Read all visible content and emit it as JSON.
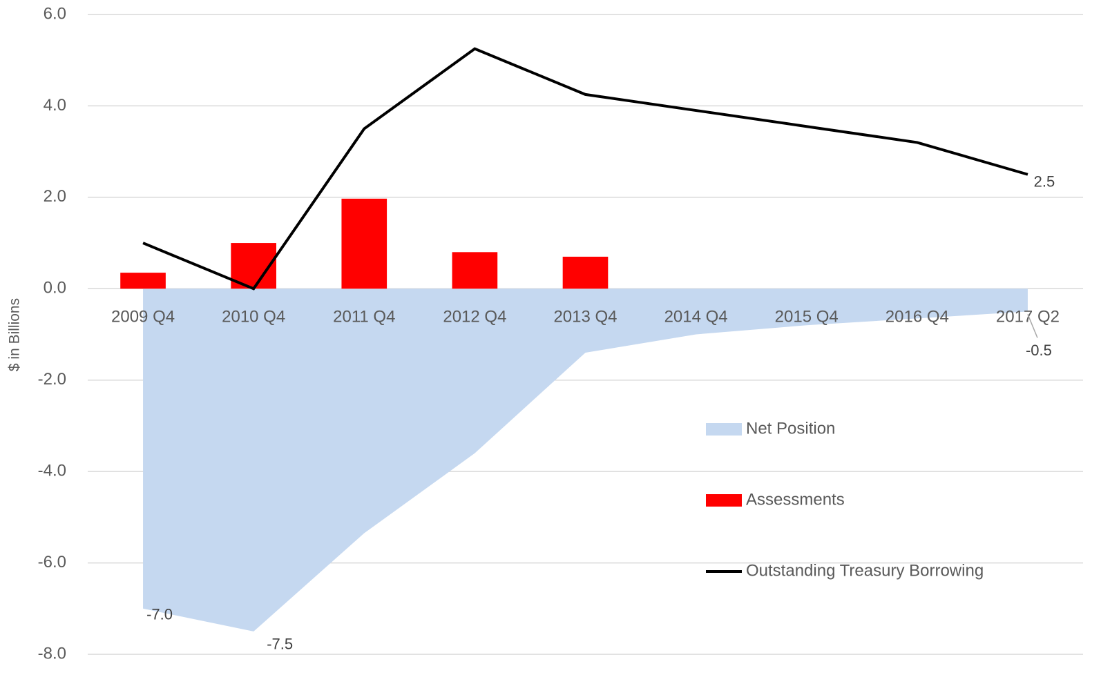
{
  "chart_data": {
    "type": "combo",
    "y_label": "$ in Billions",
    "categories": [
      "2009 Q4",
      "2010 Q4",
      "2011 Q4",
      "2012 Q4",
      "2013 Q4",
      "2014 Q4",
      "2015 Q4",
      "2016 Q4",
      "2017 Q2"
    ],
    "series": [
      {
        "name": "Net Position",
        "type": "area",
        "color": "#c5d8f0",
        "values": [
          -7.0,
          -7.5,
          -5.35,
          -3.6,
          -1.4,
          -1.0,
          -0.8,
          -0.65,
          -0.5
        ],
        "value_labels": [
          "-7.0",
          "-7.5",
          null,
          null,
          null,
          null,
          null,
          null,
          "-0.5"
        ]
      },
      {
        "name": "Assessments",
        "type": "bar",
        "color": "#ff0000",
        "values": [
          0.35,
          1.0,
          1.97,
          0.8,
          0.7,
          null,
          null,
          null,
          null
        ]
      },
      {
        "name": "Outstanding Treasury Borrowing",
        "type": "line",
        "color": "#000000",
        "values": [
          1.0,
          0.0,
          3.5,
          5.25,
          4.25,
          3.9,
          3.55,
          3.2,
          2.5
        ],
        "value_labels": [
          null,
          null,
          null,
          null,
          null,
          null,
          null,
          null,
          "2.5"
        ]
      }
    ],
    "ylim": [
      -8,
      6
    ],
    "yticks": [
      {
        "value": 6,
        "label": "6.0"
      },
      {
        "value": 4,
        "label": "4.0"
      },
      {
        "value": 2,
        "label": "2.0"
      },
      {
        "value": 0,
        "label": "0.0"
      },
      {
        "value": -2,
        "label": "-2.0"
      },
      {
        "value": -4,
        "label": "-4.0"
      },
      {
        "value": -6,
        "label": "-6.0"
      },
      {
        "value": -8,
        "label": "-8.0"
      }
    ],
    "grid": true,
    "legend": "right"
  }
}
